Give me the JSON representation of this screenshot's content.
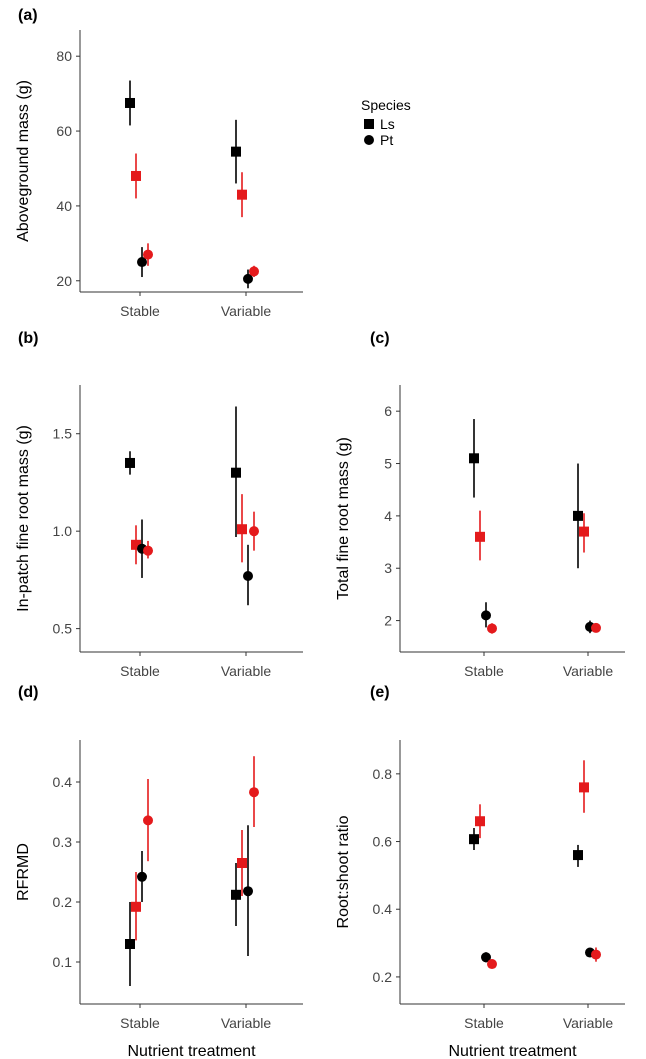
{
  "colors": {
    "Ls": "#000000",
    "Pt": "#000000",
    "light": "#000000",
    "dark": "#e41a1c"
  },
  "legend": {
    "title": "Species",
    "entries": [
      {
        "label": "Ls",
        "shape": "square"
      },
      {
        "label": "Pt",
        "shape": "circle"
      }
    ]
  },
  "chart_data": [
    {
      "type": "scatter",
      "panel": "(a)",
      "xlabel": "",
      "ylabel": "Aboveground mass (g)",
      "categories": [
        "Stable",
        "Variable"
      ],
      "ylim": [
        17,
        87
      ],
      "yticks": [
        20,
        40,
        60,
        80
      ],
      "series": [
        {
          "species": "Ls",
          "color": "#000000",
          "values": [
            67.5,
            54.5
          ],
          "err_low": [
            61.5,
            46.0
          ],
          "err_high": [
            73.5,
            63.0
          ]
        },
        {
          "species": "Ls",
          "color": "#e41a1c",
          "values": [
            48.0,
            43.0
          ],
          "err_low": [
            42.0,
            37.0
          ],
          "err_high": [
            54.0,
            49.0
          ]
        },
        {
          "species": "Pt",
          "color": "#000000",
          "values": [
            25.0,
            20.5
          ],
          "err_low": [
            21.0,
            18.0
          ],
          "err_high": [
            29.0,
            23.0
          ]
        },
        {
          "species": "Pt",
          "color": "#e41a1c",
          "values": [
            27.0,
            22.5
          ],
          "err_low": [
            24.0,
            21.0
          ],
          "err_high": [
            30.0,
            24.0
          ]
        }
      ]
    },
    {
      "type": "scatter",
      "panel": "(b)",
      "xlabel": "",
      "ylabel": "In-patch fine root mass (g)",
      "categories": [
        "Stable",
        "Variable"
      ],
      "ylim": [
        0.38,
        1.75
      ],
      "yticks": [
        0.5,
        1.0,
        1.5
      ],
      "series": [
        {
          "species": "Ls",
          "color": "#000000",
          "values": [
            1.35,
            1.3
          ],
          "err_low": [
            1.29,
            0.97
          ],
          "err_high": [
            1.41,
            1.64
          ]
        },
        {
          "species": "Ls",
          "color": "#e41a1c",
          "values": [
            0.93,
            1.01
          ],
          "err_low": [
            0.83,
            0.84
          ],
          "err_high": [
            1.03,
            1.19
          ]
        },
        {
          "species": "Pt",
          "color": "#000000",
          "values": [
            0.91,
            0.77
          ],
          "err_low": [
            0.76,
            0.62
          ],
          "err_high": [
            1.06,
            0.93
          ]
        },
        {
          "species": "Pt",
          "color": "#e41a1c",
          "values": [
            0.9,
            1.0
          ],
          "err_low": [
            0.86,
            0.9
          ],
          "err_high": [
            0.95,
            1.1
          ]
        }
      ]
    },
    {
      "type": "scatter",
      "panel": "(c)",
      "xlabel": "",
      "ylabel": "Total fine root mass (g)",
      "categories": [
        "Stable",
        "Variable"
      ],
      "ylim": [
        1.4,
        6.5
      ],
      "yticks": [
        2,
        3,
        4,
        5,
        6
      ],
      "series": [
        {
          "species": "Ls",
          "color": "#000000",
          "values": [
            5.1,
            4.0
          ],
          "err_low": [
            4.35,
            3.0
          ],
          "err_high": [
            5.85,
            5.0
          ]
        },
        {
          "species": "Ls",
          "color": "#e41a1c",
          "values": [
            3.6,
            3.7
          ],
          "err_low": [
            3.15,
            3.3
          ],
          "err_high": [
            4.1,
            4.05
          ]
        },
        {
          "species": "Pt",
          "color": "#000000",
          "values": [
            2.1,
            1.88
          ],
          "err_low": [
            1.87,
            1.76
          ],
          "err_high": [
            2.35,
            2.0
          ]
        },
        {
          "species": "Pt",
          "color": "#e41a1c",
          "values": [
            1.85,
            1.86
          ],
          "err_low": [
            1.75,
            1.8
          ],
          "err_high": [
            1.95,
            1.92
          ]
        }
      ]
    },
    {
      "type": "scatter",
      "panel": "(d)",
      "xlabel": "Nutrient treatment",
      "ylabel": "RFRMD",
      "categories": [
        "Stable",
        "Variable"
      ],
      "ylim": [
        0.03,
        0.47
      ],
      "yticks": [
        0.1,
        0.2,
        0.3,
        0.4
      ],
      "series": [
        {
          "species": "Ls",
          "color": "#000000",
          "values": [
            0.13,
            0.212
          ],
          "err_low": [
            0.06,
            0.16
          ],
          "err_high": [
            0.2,
            0.265
          ]
        },
        {
          "species": "Ls",
          "color": "#e41a1c",
          "values": [
            0.192,
            0.265
          ],
          "err_low": [
            0.136,
            0.21
          ],
          "err_high": [
            0.25,
            0.32
          ]
        },
        {
          "species": "Pt",
          "color": "#000000",
          "values": [
            0.242,
            0.218
          ],
          "err_low": [
            0.2,
            0.11
          ],
          "err_high": [
            0.285,
            0.328
          ]
        },
        {
          "species": "Pt",
          "color": "#e41a1c",
          "values": [
            0.336,
            0.383
          ],
          "err_low": [
            0.268,
            0.325
          ],
          "err_high": [
            0.405,
            0.443
          ]
        }
      ]
    },
    {
      "type": "scatter",
      "panel": "(e)",
      "xlabel": "Nutrient treatment",
      "ylabel": "Root:shoot ratio",
      "categories": [
        "Stable",
        "Variable"
      ],
      "ylim": [
        0.12,
        0.9
      ],
      "yticks": [
        0.2,
        0.4,
        0.6,
        0.8
      ],
      "series": [
        {
          "species": "Ls",
          "color": "#000000",
          "values": [
            0.607,
            0.56
          ],
          "err_low": [
            0.575,
            0.525
          ],
          "err_high": [
            0.64,
            0.59
          ]
        },
        {
          "species": "Ls",
          "color": "#e41a1c",
          "values": [
            0.66,
            0.76
          ],
          "err_low": [
            0.61,
            0.685
          ],
          "err_high": [
            0.71,
            0.84
          ]
        },
        {
          "species": "Pt",
          "color": "#000000",
          "values": [
            0.258,
            0.272
          ],
          "err_low": [
            0.243,
            0.262
          ],
          "err_high": [
            0.273,
            0.282
          ]
        },
        {
          "species": "Pt",
          "color": "#e41a1c",
          "values": [
            0.238,
            0.266
          ],
          "err_low": [
            0.228,
            0.245
          ],
          "err_high": [
            0.248,
            0.287
          ]
        }
      ]
    }
  ]
}
